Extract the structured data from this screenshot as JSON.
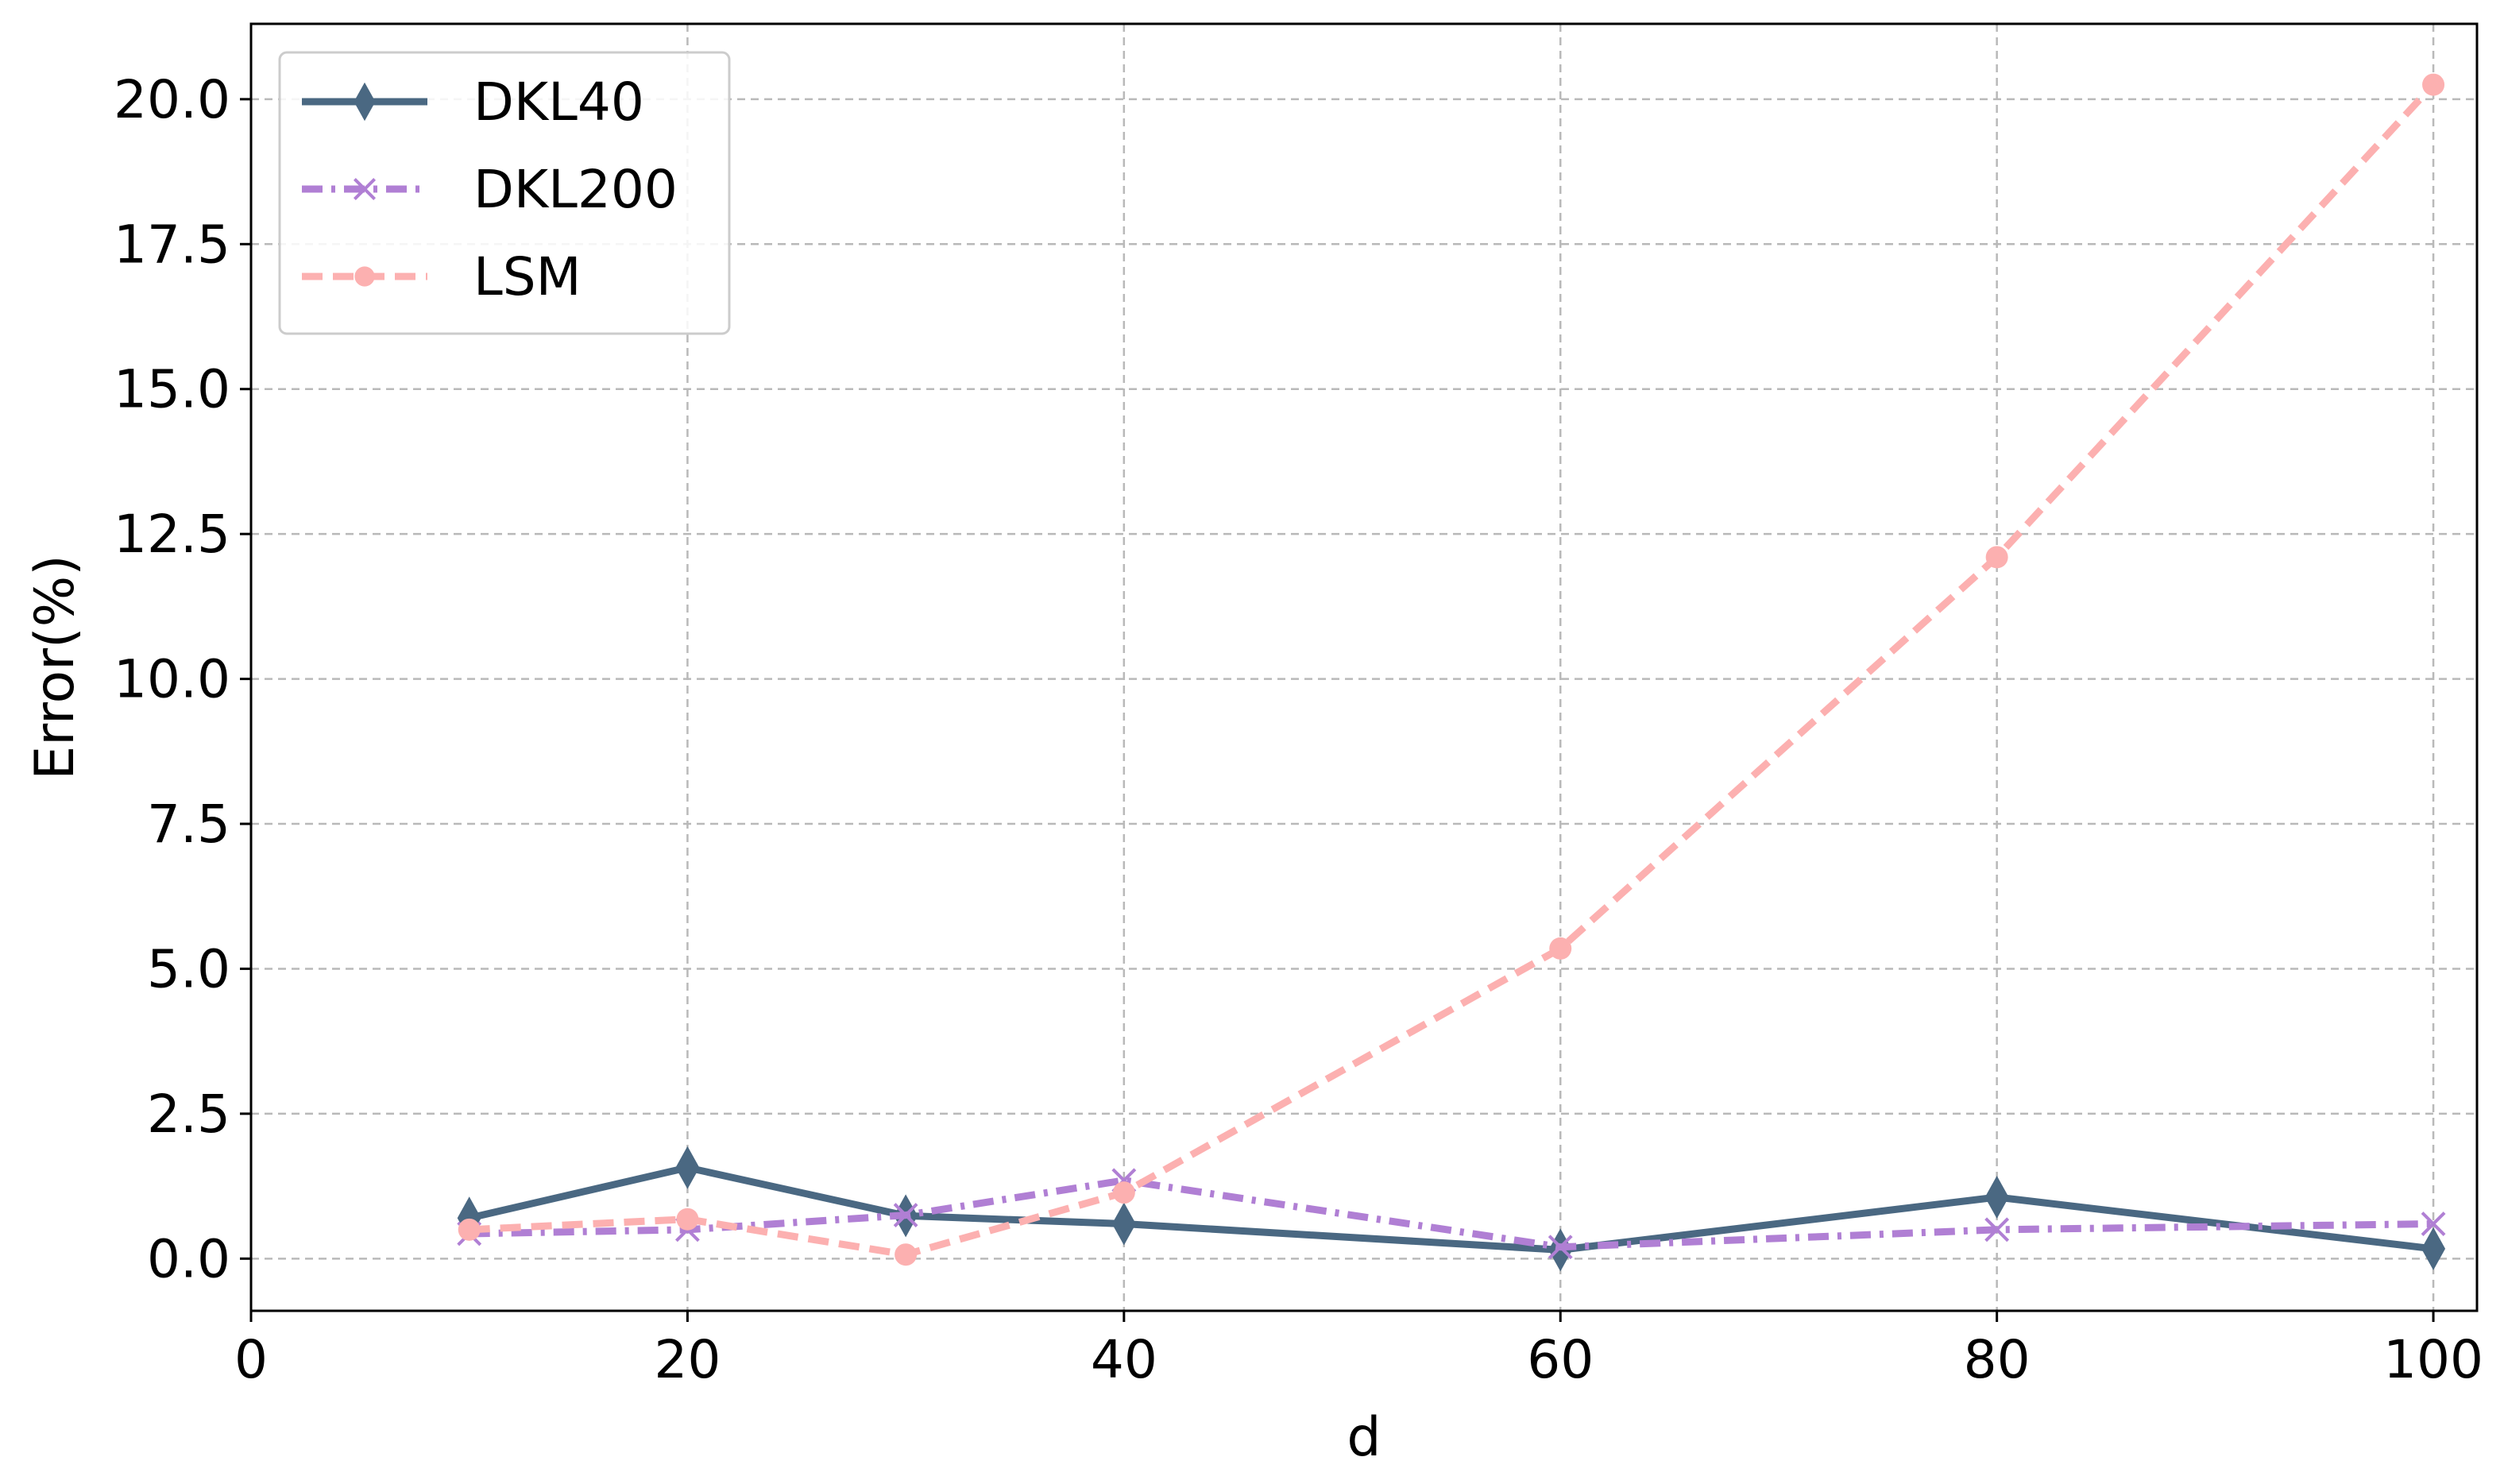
{
  "chart_data": {
    "type": "line",
    "xlabel": "d",
    "ylabel": "Error(%)",
    "xlim": [
      0,
      102
    ],
    "ylim": [
      -0.9,
      21.3
    ],
    "x_ticks": [
      0,
      20,
      40,
      60,
      80,
      100
    ],
    "y_ticks": [
      0.0,
      2.5,
      5.0,
      7.5,
      10.0,
      12.5,
      15.0,
      17.5,
      20.0
    ],
    "x_tick_labels": [
      "0",
      "20",
      "40",
      "60",
      "80",
      "100"
    ],
    "y_tick_labels": [
      "0.0",
      "2.5",
      "5.0",
      "7.5",
      "10.0",
      "12.5",
      "15.0",
      "17.5",
      "20.0"
    ],
    "grid": true,
    "legend_position": "top-left",
    "series": [
      {
        "name": "DKL40",
        "color": "#4a6882",
        "line_style": "solid",
        "marker": "diamond",
        "x": [
          10,
          20,
          30,
          40,
          60,
          80,
          100
        ],
        "y": [
          0.7,
          1.57,
          0.74,
          0.6,
          0.15,
          1.06,
          0.17
        ]
      },
      {
        "name": "DKL200",
        "color": "#b07fd4",
        "line_style": "dashdot",
        "marker": "x",
        "x": [
          10,
          20,
          30,
          40,
          60,
          80,
          100
        ],
        "y": [
          0.43,
          0.5,
          0.75,
          1.35,
          0.2,
          0.5,
          0.6
        ]
      },
      {
        "name": "LSM",
        "color": "#fcb0b0",
        "line_style": "dashed",
        "marker": "circle",
        "x": [
          10,
          20,
          30,
          40,
          60,
          80,
          100
        ],
        "y": [
          0.5,
          0.68,
          0.07,
          1.14,
          5.35,
          12.1,
          20.25
        ]
      }
    ]
  }
}
